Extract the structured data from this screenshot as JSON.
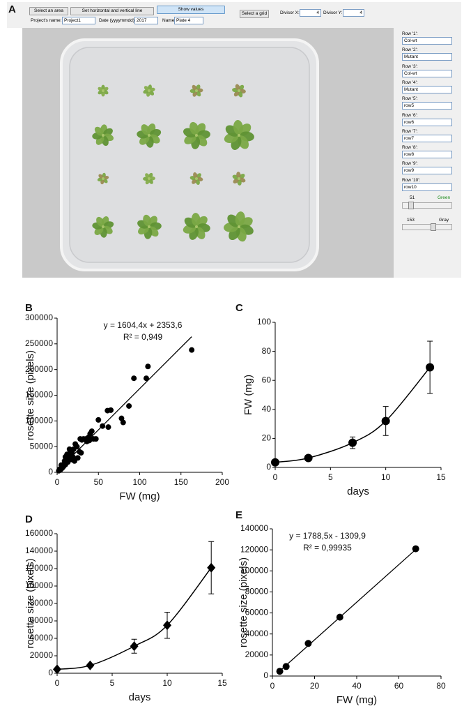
{
  "panel_labels": [
    "A",
    "B",
    "C",
    "D",
    "E"
  ],
  "ui": {
    "toolbar": {
      "buttons": [
        "Select an area",
        "Set horizontal and vertical line",
        "Show values",
        "Select a grid"
      ],
      "divisor_x_label": "Divisor X:",
      "divisor_x": 4,
      "divisor_y_label": "Divisor Y:",
      "divisor_y": 4,
      "project_label": "Project's name:",
      "project": "Project1",
      "date_label": "Date (yyyymmdd):",
      "date": "2017",
      "name_label": "Name:",
      "name": "Plate 4"
    },
    "rows": [
      {
        "label": "Row '1':",
        "value": "Col-wt"
      },
      {
        "label": "Row '2':",
        "value": "Mutant"
      },
      {
        "label": "Row '3':",
        "value": "Col-wt"
      },
      {
        "label": "Row '4':",
        "value": "Mutant"
      },
      {
        "label": "Row '5':",
        "value": "row5"
      },
      {
        "label": "Row '6':",
        "value": "row6"
      },
      {
        "label": "Row '7':",
        "value": "row7"
      },
      {
        "label": "Row '8':",
        "value": "row8"
      },
      {
        "label": "Row '9':",
        "value": "row9"
      },
      {
        "label": "Row '10':",
        "value": "row10"
      }
    ],
    "sliders": [
      {
        "value": 51,
        "label": "Green"
      },
      {
        "value": 153,
        "label": "Gray"
      }
    ]
  },
  "chart_data": [
    {
      "type": "scatter",
      "xlabel": "FW (mg)",
      "ylabel": "rosette size (pixels)",
      "annotation": [
        "y = 1604,4x + 2353,6",
        "R² = 0,949"
      ],
      "color": "#000000",
      "x": [
        163,
        110,
        108,
        93,
        87,
        80,
        78,
        65,
        61,
        62,
        55,
        50,
        47,
        44,
        42,
        40,
        39,
        38,
        36,
        32,
        30,
        28,
        27,
        25,
        24,
        22,
        20,
        19,
        18,
        17,
        16,
        15,
        14,
        13,
        12,
        11,
        10,
        9,
        8,
        7,
        6,
        5,
        4,
        3,
        2,
        29,
        35,
        21,
        15,
        10
      ],
      "values": [
        238000,
        206000,
        183000,
        183000,
        129000,
        97000,
        105000,
        121000,
        120000,
        88000,
        90000,
        102000,
        65000,
        65000,
        80000,
        75000,
        62000,
        68000,
        60000,
        65000,
        63000,
        65000,
        40000,
        28000,
        50000,
        55000,
        45000,
        30000,
        38000,
        25000,
        40000,
        45000,
        32000,
        20000,
        35000,
        25000,
        15000,
        22000,
        12000,
        10000,
        8000,
        14000,
        5000,
        6000,
        3000,
        38000,
        65000,
        22000,
        30000,
        30000
      ],
      "trendline": {
        "x": [
          0,
          163
        ],
        "y": [
          2353.6,
          263870
        ]
      },
      "xlim": [
        0,
        200
      ],
      "xticks": [
        0,
        50,
        100,
        150,
        200
      ],
      "ylim": [
        0,
        300000
      ],
      "yticks": [
        0,
        50000,
        100000,
        150000,
        200000,
        250000,
        300000
      ]
    },
    {
      "type": "line",
      "xlabel": "days",
      "ylabel": "FW (mg)",
      "marker": "circle",
      "color": "#000000",
      "x": [
        0,
        3,
        7,
        10,
        14
      ],
      "values": [
        3.5,
        6.5,
        17,
        32,
        69
      ],
      "errors": [
        1,
        1,
        4,
        10,
        18
      ],
      "xlim": [
        0,
        15
      ],
      "xticks": [
        0,
        5,
        10,
        15
      ],
      "ylim": [
        0,
        100
      ],
      "yticks": [
        0,
        20,
        40,
        60,
        80,
        100
      ]
    },
    {
      "type": "line",
      "xlabel": "days",
      "ylabel": "rosette size (pixels)",
      "marker": "diamond",
      "color": "#000000",
      "x": [
        0,
        3,
        7,
        10,
        14
      ],
      "values": [
        4500,
        9000,
        31000,
        55000,
        121000
      ],
      "errors": [
        1000,
        1500,
        8000,
        15000,
        30000
      ],
      "xlim": [
        0,
        15
      ],
      "xticks": [
        0,
        5,
        10,
        15
      ],
      "ylim": [
        0,
        160000
      ],
      "yticks": [
        0,
        20000,
        40000,
        60000,
        80000,
        100000,
        120000,
        140000,
        160000
      ]
    },
    {
      "type": "scatter",
      "xlabel": "FW (mg)",
      "ylabel": "rosette size (pixels)",
      "annotation": [
        "y = 1788,5x - 1309,9",
        "R² = 0,99935"
      ],
      "color": "#000000",
      "marker_size": 5,
      "x": [
        3.5,
        6.5,
        17,
        32,
        68
      ],
      "values": [
        4500,
        9000,
        31000,
        56000,
        121000
      ],
      "trendline": {
        "x": [
          3,
          68
        ],
        "y": [
          4000,
          120300
        ]
      },
      "xlim": [
        0,
        80
      ],
      "xticks": [
        0,
        20,
        40,
        60,
        80
      ],
      "ylim": [
        0,
        140000
      ],
      "yticks": [
        0,
        20000,
        40000,
        60000,
        80000,
        100000,
        120000,
        140000
      ]
    }
  ]
}
